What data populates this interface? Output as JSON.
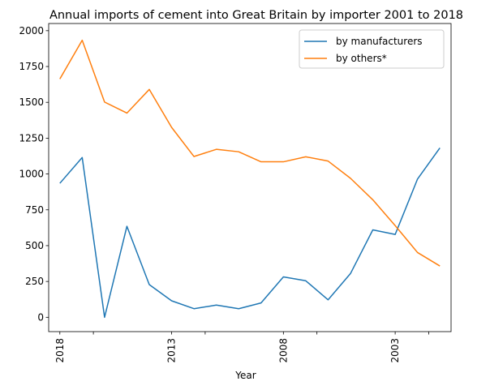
{
  "chart_data": {
    "type": "line",
    "title": "Annual imports of cement into Great Britain by importer 2001 to 2018",
    "xlabel": "Year",
    "ylabel": "",
    "x": [
      2018,
      2017,
      2016,
      2015,
      2014,
      2013,
      2012,
      2011,
      2010,
      2009,
      2008,
      2007,
      2006,
      2005,
      2004,
      2003,
      2002,
      2001
    ],
    "x_reversed": true,
    "xlim": [
      2018.5,
      2000.5
    ],
    "ylim": [
      -100,
      2050
    ],
    "yticks": [
      0,
      250,
      500,
      750,
      1000,
      1250,
      1500,
      1750,
      2000
    ],
    "xticks_labeled": [
      "2018",
      "2013",
      "2008",
      "2003"
    ],
    "xticks_labeled_values": [
      2018,
      2013,
      2008,
      2003
    ],
    "xticks_minor_values": [
      2016.5,
      2011.5,
      2006.5,
      2001.5
    ],
    "grid": false,
    "legend_position": "top-right",
    "series": [
      {
        "name": "by manufacturers",
        "color": "#1f77b4",
        "values": [
          935,
          1115,
          0,
          635,
          228,
          115,
          60,
          85,
          60,
          100,
          282,
          255,
          122,
          305,
          610,
          578,
          965,
          1182
        ]
      },
      {
        "name": "by others*",
        "color": "#ff7f0e",
        "values": [
          1663,
          1933,
          1502,
          1425,
          1590,
          1325,
          1122,
          1172,
          1155,
          1085,
          1085,
          1120,
          1090,
          970,
          820,
          640,
          452,
          358
        ]
      }
    ]
  }
}
